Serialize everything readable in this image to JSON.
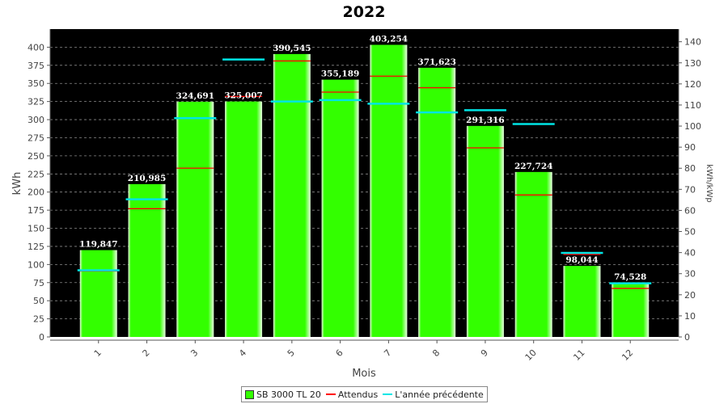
{
  "chart_data": {
    "type": "bar",
    "title": "2022",
    "xlabel": "Mois",
    "ylabel": "kWh",
    "y2label": "kWh/kWp",
    "categories": [
      "1",
      "2",
      "3",
      "4",
      "5",
      "6",
      "7",
      "8",
      "9",
      "10",
      "11",
      "12"
    ],
    "ylim": [
      0,
      425
    ],
    "y_ticks": [
      0,
      25,
      50,
      75,
      100,
      125,
      150,
      175,
      200,
      225,
      250,
      275,
      300,
      325,
      350,
      375,
      400
    ],
    "y2lim": [
      0,
      146
    ],
    "y2_ticks": [
      0,
      10,
      20,
      30,
      40,
      50,
      60,
      70,
      80,
      90,
      100,
      110,
      120,
      130,
      140
    ],
    "grid": true,
    "legend_position": "bottom",
    "series": [
      {
        "name": "SB 3000 TL 20",
        "type": "bar",
        "color": "#33ff00",
        "values": [
          119.847,
          210.985,
          324.691,
          325.007,
          390.545,
          355.189,
          403.254,
          371.623,
          291.316,
          227.724,
          98.044,
          74.528
        ],
        "labels": [
          "119,847",
          "210,985",
          "324,691",
          "325,007",
          "390,545",
          "355,189",
          "403,254",
          "371,623",
          "291,316",
          "227,724",
          "98,044",
          "74,528"
        ]
      },
      {
        "name": "Attendus",
        "type": "marker",
        "color": "#ff0000",
        "values": [
          91,
          177,
          233,
          332,
          381,
          338,
          360,
          344,
          261,
          196,
          114,
          67
        ]
      },
      {
        "name": "L'année précédente",
        "type": "marker",
        "color": "#00e5e5",
        "values": [
          92,
          190,
          302,
          383,
          325,
          327,
          322,
          310,
          313,
          294,
          116,
          74
        ]
      }
    ]
  }
}
